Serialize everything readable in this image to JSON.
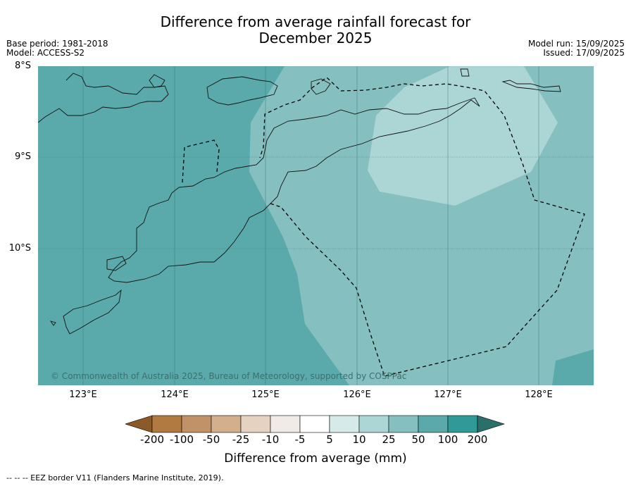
{
  "header": {
    "title_line1": "Difference from average rainfall forecast for",
    "title_line2": "December 2025",
    "base_period": "Base period: 1981-2018",
    "model": "Model: ACCESS-S2",
    "model_run": "Model run: 15/09/2025",
    "issued": "Issued: 17/09/2025"
  },
  "map": {
    "lat_labels": [
      "8°S",
      "9°S",
      "10°S"
    ],
    "lon_labels": [
      "123°E",
      "124°E",
      "125°E",
      "126°E",
      "127°E",
      "128°E"
    ],
    "copyright": "© Commonwealth of Australia 2025, Bureau of Meteorology, supported by COSPPac",
    "fill_colors": {
      "range_50_100": "#5aaaab",
      "range_25_50": "#85bfbf",
      "range_10_25": "#acd6d6"
    }
  },
  "legend": {
    "title": "Difference from average (mm)",
    "tick_labels": [
      "-200",
      "-100",
      "-50",
      "-25",
      "-10",
      "-5",
      "5",
      "10",
      "25",
      "50",
      "100",
      "200"
    ],
    "colors": [
      "#8c5a28",
      "#b07a40",
      "#c19268",
      "#d4af8e",
      "#e5d2c0",
      "#f0ebe6",
      "#ffffff",
      "#d6ebe9",
      "#acd6d6",
      "#85bfbf",
      "#5aaaab",
      "#309a98",
      "#2a6f6a"
    ]
  },
  "footnote": "--  --  -- EEZ border V11 (Flanders Marine Institute, 2019)."
}
